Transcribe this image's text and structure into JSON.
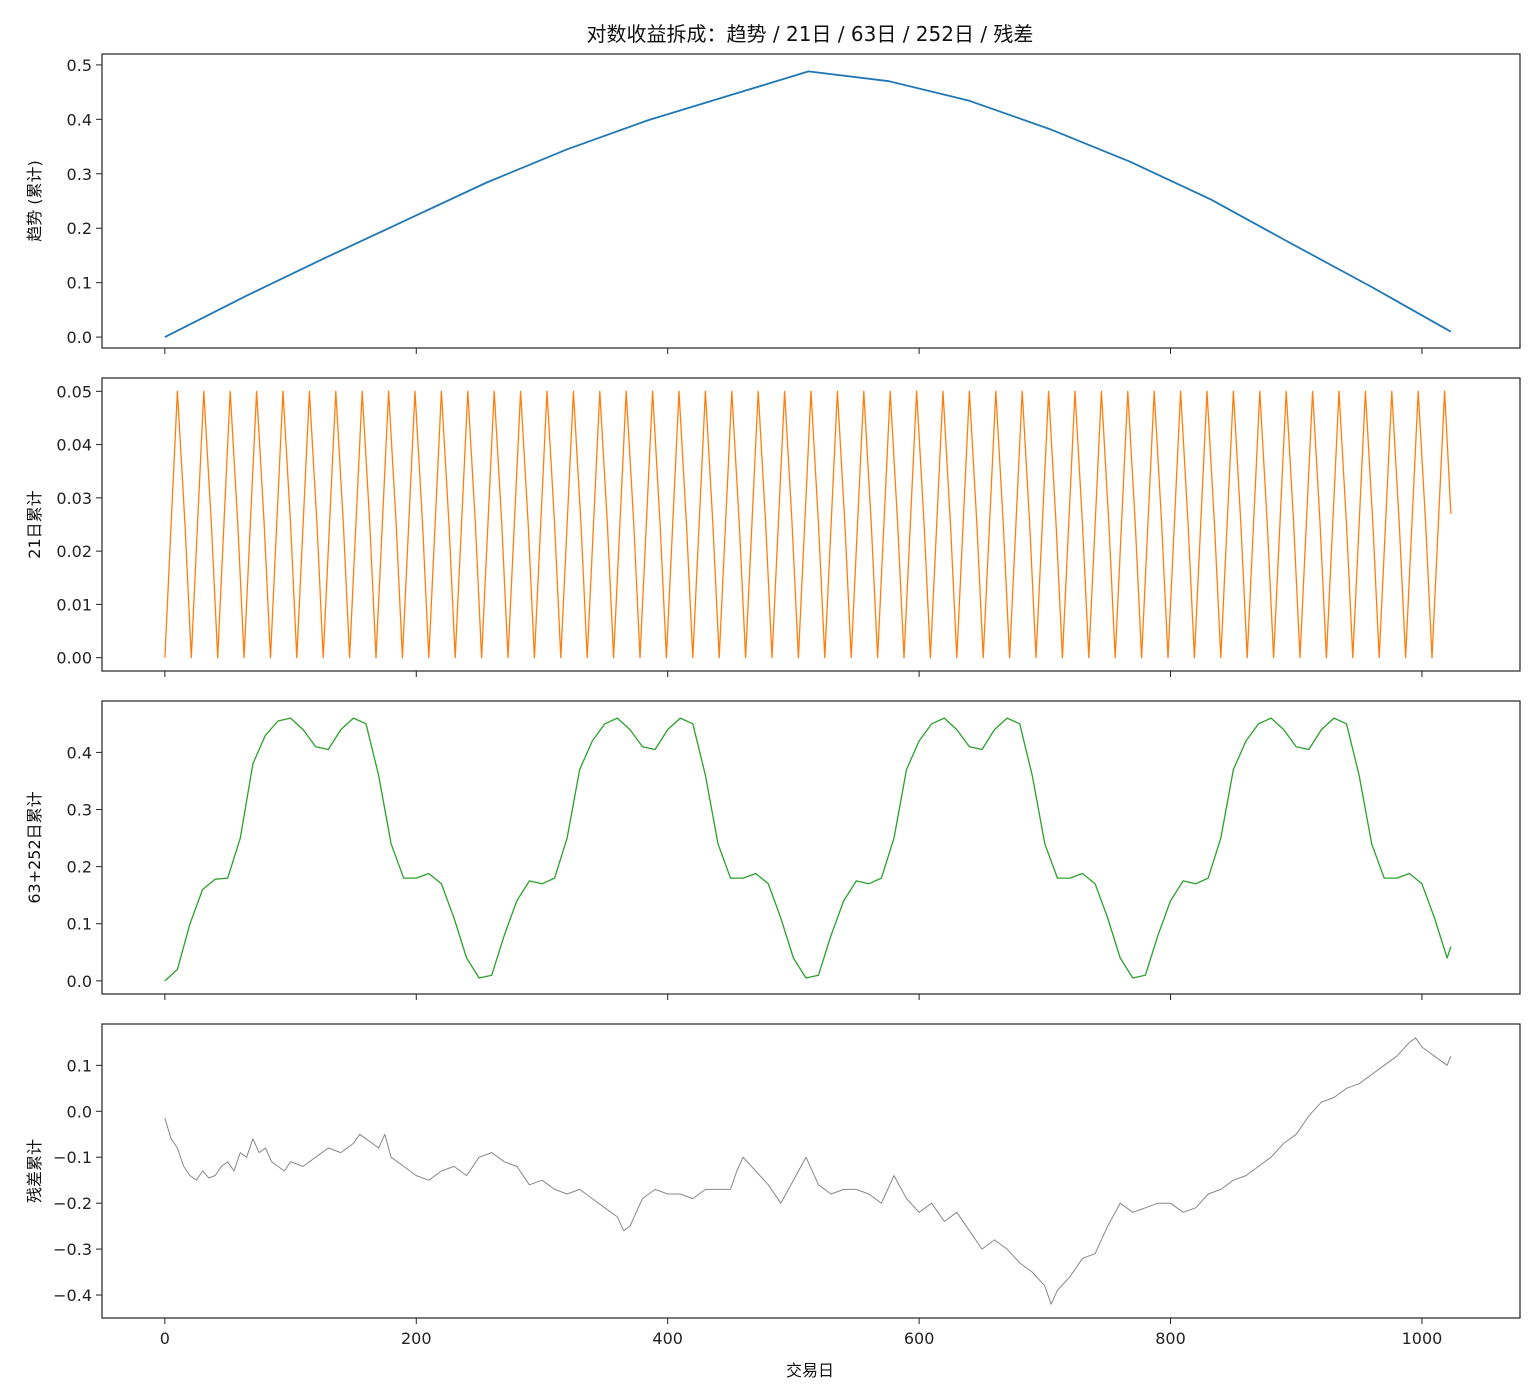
{
  "figure": {
    "title": "对数收益拆成：趋势 / 21日 / 63日 / 252日 / 残差",
    "xlabel": "交易日"
  },
  "chart_data": [
    {
      "type": "line",
      "ylabel": "趋势 (累计)",
      "color": "#1f77b4",
      "xlim": [
        -50,
        1078
      ],
      "ylim": [
        -0.02,
        0.52
      ],
      "yticks": [
        0.0,
        0.1,
        0.2,
        0.3,
        0.4,
        0.5
      ],
      "ytick_labels": [
        "0.0",
        "0.1",
        "0.2",
        "0.3",
        "0.4",
        "0.5"
      ],
      "xticks": [
        0,
        200,
        400,
        600,
        800,
        1000
      ],
      "series": [
        {
          "x": [
            0,
            64,
            128,
            192,
            256,
            320,
            384,
            448,
            512,
            576,
            640,
            704,
            768,
            832,
            896,
            960,
            1023
          ],
          "y": [
            0.0,
            0.075,
            0.146,
            0.215,
            0.284,
            0.345,
            0.398,
            0.443,
            0.488,
            0.47,
            0.434,
            0.382,
            0.322,
            0.253,
            0.172,
            0.092,
            0.01
          ]
        }
      ]
    },
    {
      "type": "line",
      "ylabel": "21日累计",
      "color": "#ff7f0e",
      "xlim": [
        -50,
        1078
      ],
      "ylim": [
        -0.0025,
        0.0525
      ],
      "yticks": [
        0.0,
        0.01,
        0.02,
        0.03,
        0.04,
        0.05
      ],
      "ytick_labels": [
        "0.00",
        "0.01",
        "0.02",
        "0.03",
        "0.04",
        "0.05"
      ],
      "xticks": [
        0,
        200,
        400,
        600,
        800,
        1000
      ],
      "period": 21,
      "series": [
        {
          "x": [
            0,
            5,
            10,
            16,
            21,
            26,
            31,
            37,
            42,
            47,
            52,
            58,
            63,
            68,
            73,
            79,
            84,
            89,
            94,
            100,
            105,
            110,
            115,
            121,
            126,
            131,
            136,
            142,
            147,
            152,
            157,
            163,
            168,
            173,
            178,
            184,
            189,
            194,
            199,
            205,
            210,
            215,
            220,
            226,
            231,
            236,
            241,
            247,
            252,
            257,
            262,
            268,
            273,
            278,
            283,
            289,
            294,
            299,
            304,
            310,
            315,
            320,
            325,
            331,
            336,
            341,
            346,
            352,
            357,
            362,
            367,
            373,
            378,
            383,
            388,
            394,
            399,
            404,
            409,
            415,
            420,
            425,
            430,
            436,
            441,
            446,
            451,
            457,
            462,
            467,
            472,
            478,
            483,
            488,
            493,
            499,
            504,
            509,
            514,
            520,
            525,
            530,
            535,
            541,
            546,
            551,
            556,
            562,
            567,
            572,
            577,
            583,
            588,
            593,
            598,
            604,
            609,
            614,
            619,
            625,
            630,
            635,
            640,
            646,
            651,
            656,
            661,
            667,
            672,
            677,
            682,
            688,
            693,
            698,
            703,
            709,
            714,
            719,
            724,
            730,
            735,
            740,
            745,
            751,
            756,
            761,
            766,
            772,
            777,
            782,
            787,
            793,
            798,
            803,
            808,
            814,
            819,
            824,
            829,
            835,
            840,
            845,
            850,
            856,
            861,
            866,
            871,
            877,
            882,
            887,
            892,
            898,
            903,
            908,
            913,
            919,
            924,
            929,
            934,
            940,
            945,
            950,
            955,
            961,
            966,
            971,
            976,
            982,
            987,
            992,
            997,
            1003,
            1008,
            1013,
            1018,
            1023
          ],
          "y": [
            0.0,
            0.025,
            0.05,
            0.025,
            0.0,
            0.025,
            0.05,
            0.025,
            0.0,
            0.025,
            0.05,
            0.025,
            0.0,
            0.025,
            0.05,
            0.025,
            0.0,
            0.025,
            0.05,
            0.025,
            0.0,
            0.025,
            0.05,
            0.025,
            0.0,
            0.025,
            0.05,
            0.025,
            0.0,
            0.025,
            0.05,
            0.025,
            0.0,
            0.025,
            0.05,
            0.025,
            0.0,
            0.025,
            0.05,
            0.025,
            0.0,
            0.025,
            0.05,
            0.025,
            0.0,
            0.025,
            0.05,
            0.025,
            0.0,
            0.025,
            0.05,
            0.025,
            0.0,
            0.025,
            0.05,
            0.025,
            0.0,
            0.025,
            0.05,
            0.025,
            0.0,
            0.025,
            0.05,
            0.025,
            0.0,
            0.025,
            0.05,
            0.025,
            0.0,
            0.025,
            0.05,
            0.025,
            0.0,
            0.025,
            0.05,
            0.025,
            0.0,
            0.025,
            0.05,
            0.025,
            0.0,
            0.025,
            0.05,
            0.025,
            0.0,
            0.025,
            0.05,
            0.025,
            0.0,
            0.025,
            0.05,
            0.025,
            0.0,
            0.025,
            0.05,
            0.025,
            0.0,
            0.025,
            0.05,
            0.025,
            0.0,
            0.025,
            0.05,
            0.025,
            0.0,
            0.025,
            0.05,
            0.025,
            0.0,
            0.025,
            0.05,
            0.025,
            0.0,
            0.025,
            0.05,
            0.025,
            0.0,
            0.025,
            0.05,
            0.025,
            0.0,
            0.025,
            0.05,
            0.025,
            0.0,
            0.025,
            0.05,
            0.025,
            0.0,
            0.025,
            0.05,
            0.025,
            0.0,
            0.025,
            0.05,
            0.025,
            0.0,
            0.025,
            0.05,
            0.025,
            0.0,
            0.025,
            0.05,
            0.025,
            0.0,
            0.025,
            0.05,
            0.025,
            0.0,
            0.025,
            0.05,
            0.025,
            0.0,
            0.025,
            0.05,
            0.025,
            0.0,
            0.025,
            0.05,
            0.025,
            0.0,
            0.025,
            0.05,
            0.025,
            0.0,
            0.025,
            0.05,
            0.025,
            0.0,
            0.025,
            0.05,
            0.025,
            0.0,
            0.025,
            0.05,
            0.025,
            0.0,
            0.025,
            0.05,
            0.025,
            0.0,
            0.025,
            0.05,
            0.025,
            0.0,
            0.025,
            0.05,
            0.025,
            0.0,
            0.025,
            0.05,
            0.025,
            0.0,
            0.025,
            0.05,
            0.027
          ]
        }
      ]
    },
    {
      "type": "line",
      "ylabel": "63+252日累计",
      "color": "#2ca02c",
      "xlim": [
        -50,
        1078
      ],
      "ylim": [
        -0.023,
        0.49
      ],
      "yticks": [
        0.0,
        0.1,
        0.2,
        0.3,
        0.4
      ],
      "ytick_labels": [
        "0.0",
        "0.1",
        "0.2",
        "0.3",
        "0.4"
      ],
      "xticks": [
        0,
        200,
        400,
        600,
        800,
        1000
      ],
      "period": 252,
      "series": [
        {
          "x": [
            0,
            10,
            20,
            30,
            40,
            50,
            60,
            70,
            80,
            90,
            100,
            110,
            120,
            130,
            140,
            150,
            160,
            170,
            180,
            190,
            200,
            210,
            220,
            230,
            240,
            250,
            260,
            270,
            280,
            290,
            300,
            310,
            320,
            330,
            340,
            350,
            360,
            370,
            380,
            390,
            400,
            410,
            420,
            430,
            440,
            450,
            460,
            470,
            480,
            490,
            500,
            510,
            520,
            530,
            540,
            550,
            560,
            570,
            580,
            590,
            600,
            610,
            620,
            630,
            640,
            650,
            660,
            670,
            680,
            690,
            700,
            710,
            720,
            730,
            740,
            750,
            760,
            770,
            780,
            790,
            800,
            810,
            820,
            830,
            840,
            850,
            860,
            870,
            880,
            890,
            900,
            910,
            920,
            930,
            940,
            950,
            960,
            970,
            980,
            990,
            1000,
            1010,
            1020,
            1023
          ],
          "y": [
            0.0,
            0.02,
            0.1,
            0.16,
            0.178,
            0.18,
            0.25,
            0.38,
            0.43,
            0.455,
            0.46,
            0.44,
            0.41,
            0.405,
            0.44,
            0.46,
            0.45,
            0.36,
            0.24,
            0.18,
            0.18,
            0.188,
            0.17,
            0.11,
            0.04,
            0.005,
            0.01,
            0.08,
            0.14,
            0.175,
            0.17,
            0.18,
            0.25,
            0.37,
            0.42,
            0.45,
            0.46,
            0.44,
            0.41,
            0.405,
            0.44,
            0.46,
            0.45,
            0.36,
            0.24,
            0.18,
            0.18,
            0.188,
            0.17,
            0.11,
            0.04,
            0.005,
            0.01,
            0.08,
            0.14,
            0.175,
            0.17,
            0.18,
            0.25,
            0.37,
            0.42,
            0.45,
            0.46,
            0.44,
            0.41,
            0.405,
            0.44,
            0.46,
            0.45,
            0.36,
            0.24,
            0.18,
            0.18,
            0.188,
            0.17,
            0.11,
            0.04,
            0.005,
            0.01,
            0.08,
            0.14,
            0.175,
            0.17,
            0.18,
            0.25,
            0.37,
            0.42,
            0.45,
            0.46,
            0.44,
            0.41,
            0.405,
            0.44,
            0.46,
            0.45,
            0.36,
            0.24,
            0.18,
            0.18,
            0.188,
            0.17,
            0.11,
            0.04,
            0.06
          ]
        }
      ]
    },
    {
      "type": "line",
      "ylabel": "残差累计",
      "color": "#888888",
      "xlim": [
        -50,
        1078
      ],
      "ylim": [
        -0.45,
        0.19
      ],
      "yticks": [
        -0.4,
        -0.3,
        -0.2,
        -0.1,
        0.0,
        0.1
      ],
      "ytick_labels": [
        "−0.4",
        "−0.3",
        "−0.2",
        "−0.1",
        "0.0",
        "0.1"
      ],
      "xticks": [
        0,
        200,
        400,
        600,
        800,
        1000
      ],
      "xtick_labels": [
        "0",
        "200",
        "400",
        "600",
        "800",
        "1000"
      ],
      "series": [
        {
          "x": [
            0,
            5,
            10,
            15,
            20,
            25,
            30,
            35,
            40,
            45,
            50,
            55,
            60,
            65,
            70,
            75,
            80,
            85,
            90,
            95,
            100,
            110,
            120,
            130,
            140,
            150,
            155,
            160,
            170,
            175,
            180,
            190,
            200,
            210,
            220,
            230,
            240,
            250,
            260,
            270,
            280,
            290,
            300,
            310,
            320,
            330,
            340,
            350,
            360,
            365,
            370,
            380,
            390,
            400,
            410,
            420,
            430,
            440,
            450,
            455,
            460,
            470,
            480,
            490,
            500,
            510,
            520,
            530,
            540,
            550,
            560,
            570,
            580,
            590,
            600,
            610,
            620,
            630,
            640,
            650,
            660,
            670,
            680,
            690,
            700,
            705,
            710,
            720,
            730,
            740,
            750,
            760,
            770,
            780,
            790,
            800,
            810,
            820,
            830,
            840,
            850,
            860,
            870,
            880,
            890,
            900,
            910,
            920,
            930,
            940,
            950,
            960,
            970,
            980,
            990,
            995,
            1000,
            1010,
            1020,
            1023
          ],
          "y": [
            -0.015,
            -0.06,
            -0.08,
            -0.12,
            -0.14,
            -0.15,
            -0.13,
            -0.145,
            -0.14,
            -0.12,
            -0.11,
            -0.13,
            -0.09,
            -0.1,
            -0.06,
            -0.09,
            -0.08,
            -0.11,
            -0.12,
            -0.13,
            -0.11,
            -0.12,
            -0.1,
            -0.08,
            -0.09,
            -0.07,
            -0.05,
            -0.06,
            -0.08,
            -0.05,
            -0.1,
            -0.12,
            -0.14,
            -0.15,
            -0.13,
            -0.12,
            -0.14,
            -0.1,
            -0.09,
            -0.11,
            -0.12,
            -0.16,
            -0.15,
            -0.17,
            -0.18,
            -0.17,
            -0.19,
            -0.21,
            -0.23,
            -0.26,
            -0.25,
            -0.19,
            -0.17,
            -0.18,
            -0.18,
            -0.19,
            -0.17,
            -0.17,
            -0.17,
            -0.13,
            -0.1,
            -0.13,
            -0.16,
            -0.2,
            -0.15,
            -0.1,
            -0.16,
            -0.18,
            -0.17,
            -0.17,
            -0.18,
            -0.2,
            -0.14,
            -0.19,
            -0.22,
            -0.2,
            -0.24,
            -0.22,
            -0.26,
            -0.3,
            -0.28,
            -0.3,
            -0.33,
            -0.35,
            -0.38,
            -0.42,
            -0.39,
            -0.36,
            -0.32,
            -0.31,
            -0.25,
            -0.2,
            -0.22,
            -0.21,
            -0.2,
            -0.2,
            -0.22,
            -0.21,
            -0.18,
            -0.17,
            -0.15,
            -0.14,
            -0.12,
            -0.1,
            -0.07,
            -0.05,
            -0.01,
            0.02,
            0.03,
            0.05,
            0.06,
            0.08,
            0.1,
            0.12,
            0.15,
            0.16,
            0.14,
            0.12,
            0.1,
            0.12
          ]
        }
      ]
    }
  ]
}
